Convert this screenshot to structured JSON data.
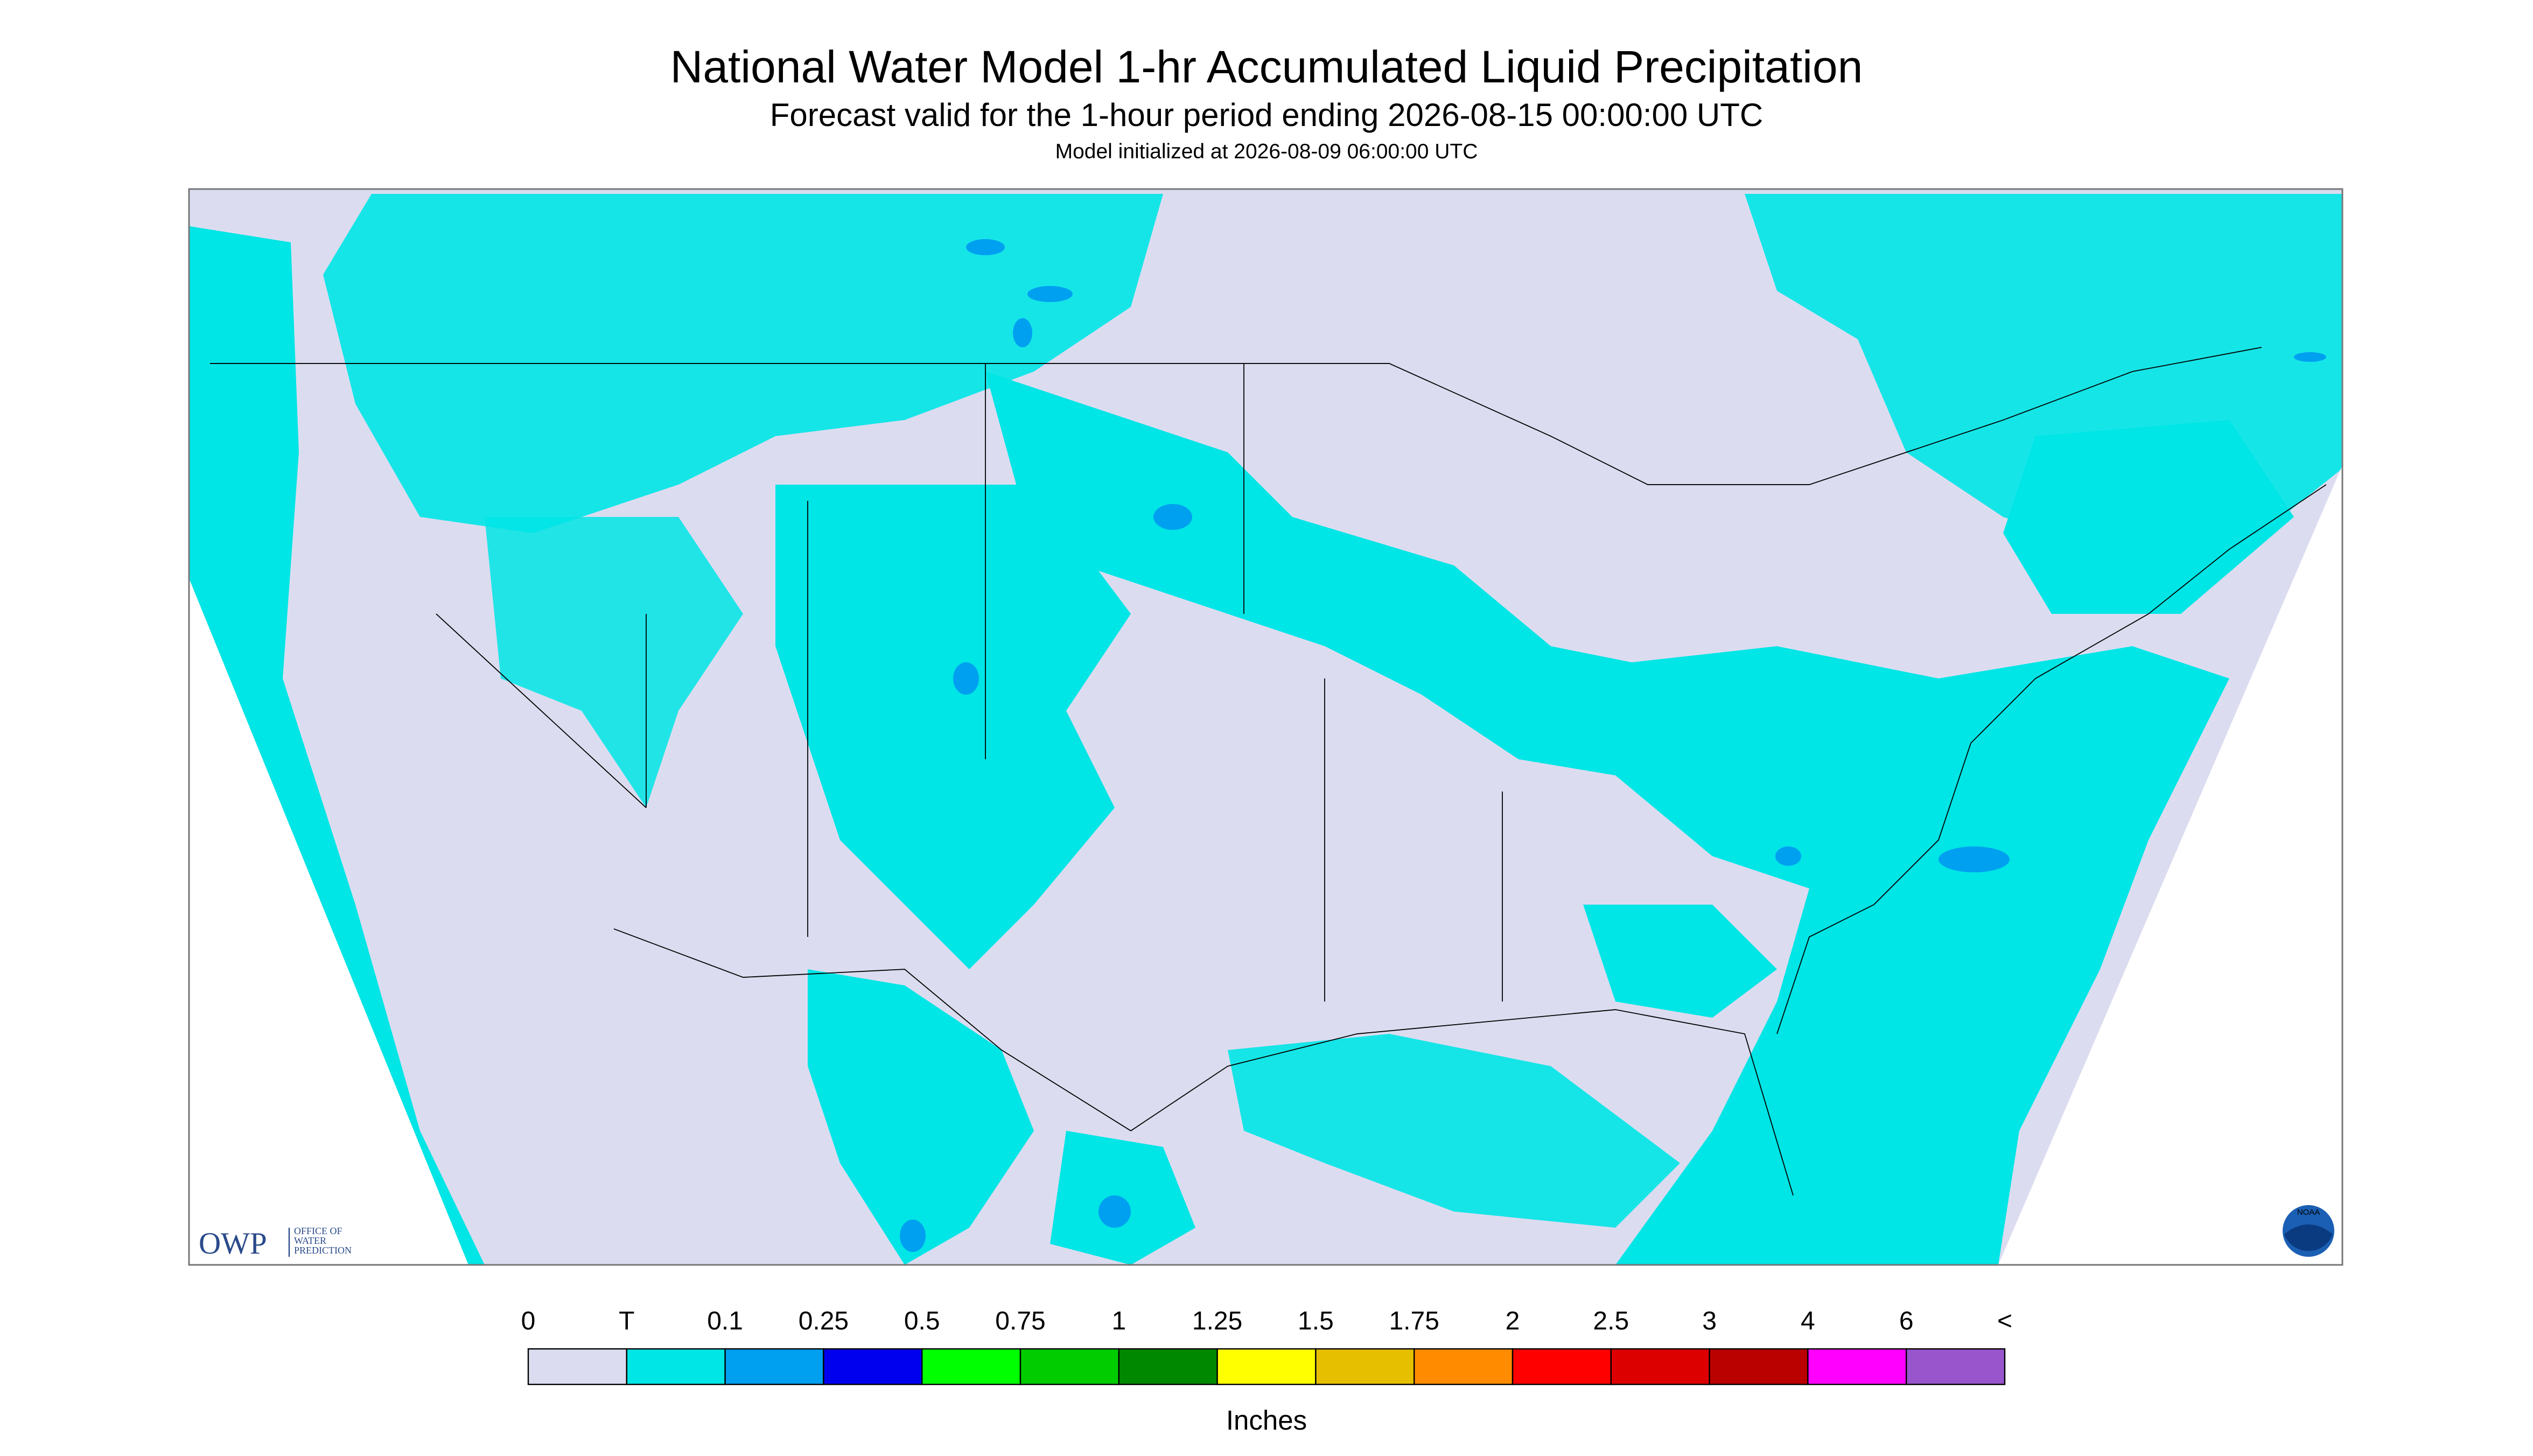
{
  "header": {
    "title": "National Water Model 1-hr Accumulated Liquid Precipitation",
    "subtitle": "Forecast valid for the 1-hour period ending 2026-08-15 00:00:00 UTC",
    "init": "Model initialized at 2026-08-09 06:00:00 UTC"
  },
  "logos": {
    "owp": "OWP",
    "owp_name": [
      "OFFICE OF",
      "WATER",
      "PREDICTION"
    ],
    "noaa": "NOAA"
  },
  "legend": {
    "labels": [
      "0",
      "T",
      "0.1",
      "0.25",
      "0.5",
      "0.75",
      "1",
      "1.25",
      "1.5",
      "1.75",
      "2",
      "2.5",
      "3",
      "4",
      "6",
      "<"
    ],
    "colors": [
      "#dcdcf0",
      "#00e5e5",
      "#00a0f0",
      "#0000ee",
      "#00ff00",
      "#00cc00",
      "#008800",
      "#ffff00",
      "#e6c000",
      "#ff8c00",
      "#ff0000",
      "#dd0000",
      "#bb0000",
      "#ff00ff",
      "#9955cc"
    ],
    "unit": "Inches"
  }
}
